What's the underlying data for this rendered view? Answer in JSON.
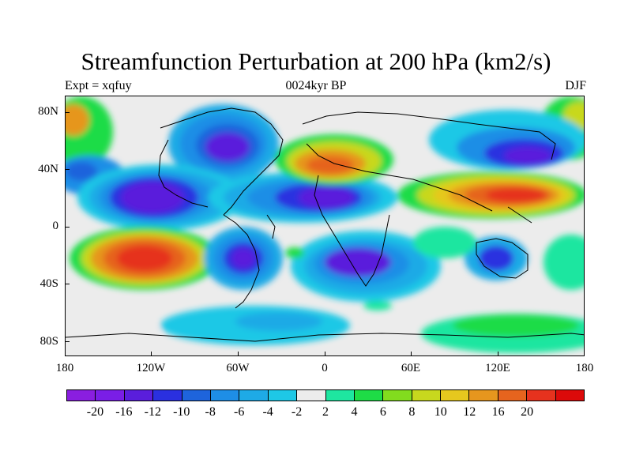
{
  "title": "Streamfunction Perturbation at 200 hPa (km2/s)",
  "subtitle_left": "Expt = xqfuy",
  "subtitle_center": "0024kyr BP",
  "subtitle_right": "DJF",
  "lat_labels": [
    "80N",
    "40N",
    "0",
    "40S",
    "80S"
  ],
  "lon_labels": [
    "180",
    "120W",
    "60W",
    "0",
    "60E",
    "120E",
    "180"
  ],
  "colorbar": {
    "colors": [
      "#8a1ee0",
      "#7a1ee6",
      "#5a1edc",
      "#2a30e0",
      "#1e64dc",
      "#1e8ee6",
      "#1eaae6",
      "#1ec8e6",
      "#ececec",
      "#1ee6a0",
      "#1edc46",
      "#82dc1e",
      "#c8d81e",
      "#e6c81e",
      "#e6961e",
      "#e6641e",
      "#e6321e",
      "#dc0a0a"
    ],
    "labels": [
      "-20",
      "-16",
      "-12",
      "-10",
      "-8",
      "-6",
      "-4",
      "-2",
      "2",
      "4",
      "6",
      "8",
      "10",
      "12",
      "16",
      "20"
    ]
  }
}
